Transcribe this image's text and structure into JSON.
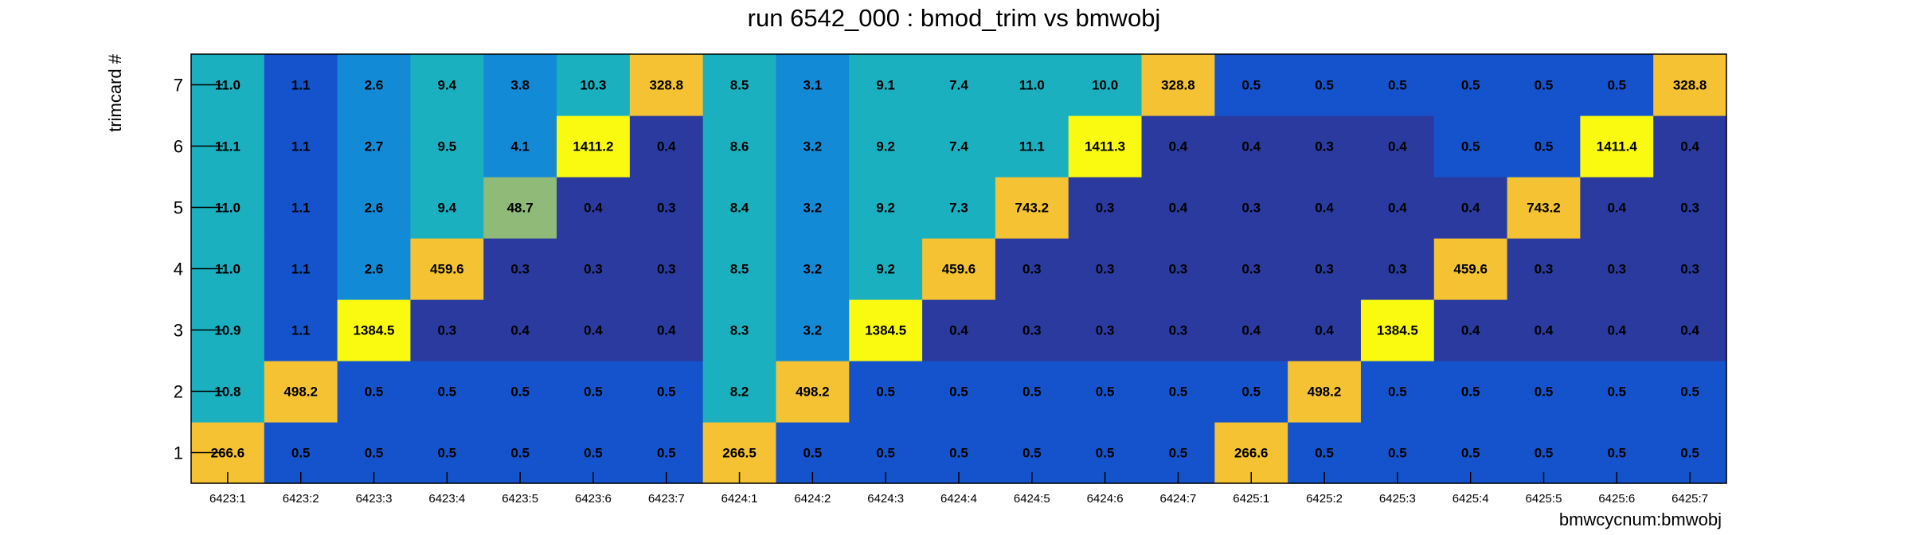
{
  "chart_data": {
    "type": "heatmap",
    "title": "run 6542_000 : bmod_trim vs bmwobj",
    "xlabel": "bmwcycnum:bmwobj",
    "ylabel": "trimcard #",
    "x_categories": [
      "6423:1",
      "6423:2",
      "6423:3",
      "6423:4",
      "6423:5",
      "6423:6",
      "6423:7",
      "6424:1",
      "6424:2",
      "6424:3",
      "6424:4",
      "6424:5",
      "6424:6",
      "6424:7",
      "6425:1",
      "6425:2",
      "6425:3",
      "6425:4",
      "6425:5",
      "6425:6",
      "6425:7"
    ],
    "y_categories": [
      "1",
      "2",
      "3",
      "4",
      "5",
      "6",
      "7"
    ],
    "values": [
      [
        "266.6",
        "0.5",
        "0.5",
        "0.5",
        "0.5",
        "0.5",
        "0.5",
        "266.5",
        "0.5",
        "0.5",
        "0.5",
        "0.5",
        "0.5",
        "0.5",
        "266.6",
        "0.5",
        "0.5",
        "0.5",
        "0.5",
        "0.5",
        "0.5"
      ],
      [
        "10.8",
        "498.2",
        "0.5",
        "0.5",
        "0.5",
        "0.5",
        "0.5",
        "8.2",
        "498.2",
        "0.5",
        "0.5",
        "0.5",
        "0.5",
        "0.5",
        "0.5",
        "498.2",
        "0.5",
        "0.5",
        "0.5",
        "0.5",
        "0.5"
      ],
      [
        "10.9",
        "1.1",
        "1384.5",
        "0.3",
        "0.4",
        "0.4",
        "0.4",
        "8.3",
        "3.2",
        "1384.5",
        "0.4",
        "0.3",
        "0.3",
        "0.3",
        "0.4",
        "0.4",
        "1384.5",
        "0.4",
        "0.4",
        "0.4",
        "0.4"
      ],
      [
        "11.0",
        "1.1",
        "2.6",
        "459.6",
        "0.3",
        "0.3",
        "0.3",
        "8.5",
        "3.2",
        "9.2",
        "459.6",
        "0.3",
        "0.3",
        "0.3",
        "0.3",
        "0.3",
        "0.3",
        "459.6",
        "0.3",
        "0.3",
        "0.3"
      ],
      [
        "11.0",
        "1.1",
        "2.6",
        "9.4",
        "48.7",
        "0.4",
        "0.3",
        "8.4",
        "3.2",
        "9.2",
        "7.3",
        "743.2",
        "0.3",
        "0.4",
        "0.3",
        "0.4",
        "0.4",
        "0.4",
        "743.2",
        "0.4",
        "0.3"
      ],
      [
        "11.1",
        "1.1",
        "2.7",
        "9.5",
        "4.1",
        "1411.2",
        "0.4",
        "8.6",
        "3.2",
        "9.2",
        "7.4",
        "11.1",
        "1411.3",
        "0.4",
        "0.4",
        "0.3",
        "0.4",
        "0.5",
        "0.5",
        "1411.4",
        "0.4"
      ],
      [
        "11.0",
        "1.1",
        "2.6",
        "9.4",
        "3.8",
        "10.3",
        "328.8",
        "8.5",
        "3.1",
        "9.1",
        "7.4",
        "11.0",
        "10.0",
        "328.8",
        "0.5",
        "0.5",
        "0.5",
        "0.5",
        "0.5",
        "0.5",
        "328.8"
      ]
    ],
    "color_scale": "log",
    "colors": {
      "empty": "#2a3a9e",
      "low": "#1553cc",
      "mid_low": "#138ad6",
      "mid": "#1bb0c0",
      "mid_high": "#8fba78",
      "high": "#f4c233",
      "max": "#fafa10"
    },
    "legend": "none",
    "grid": false
  }
}
